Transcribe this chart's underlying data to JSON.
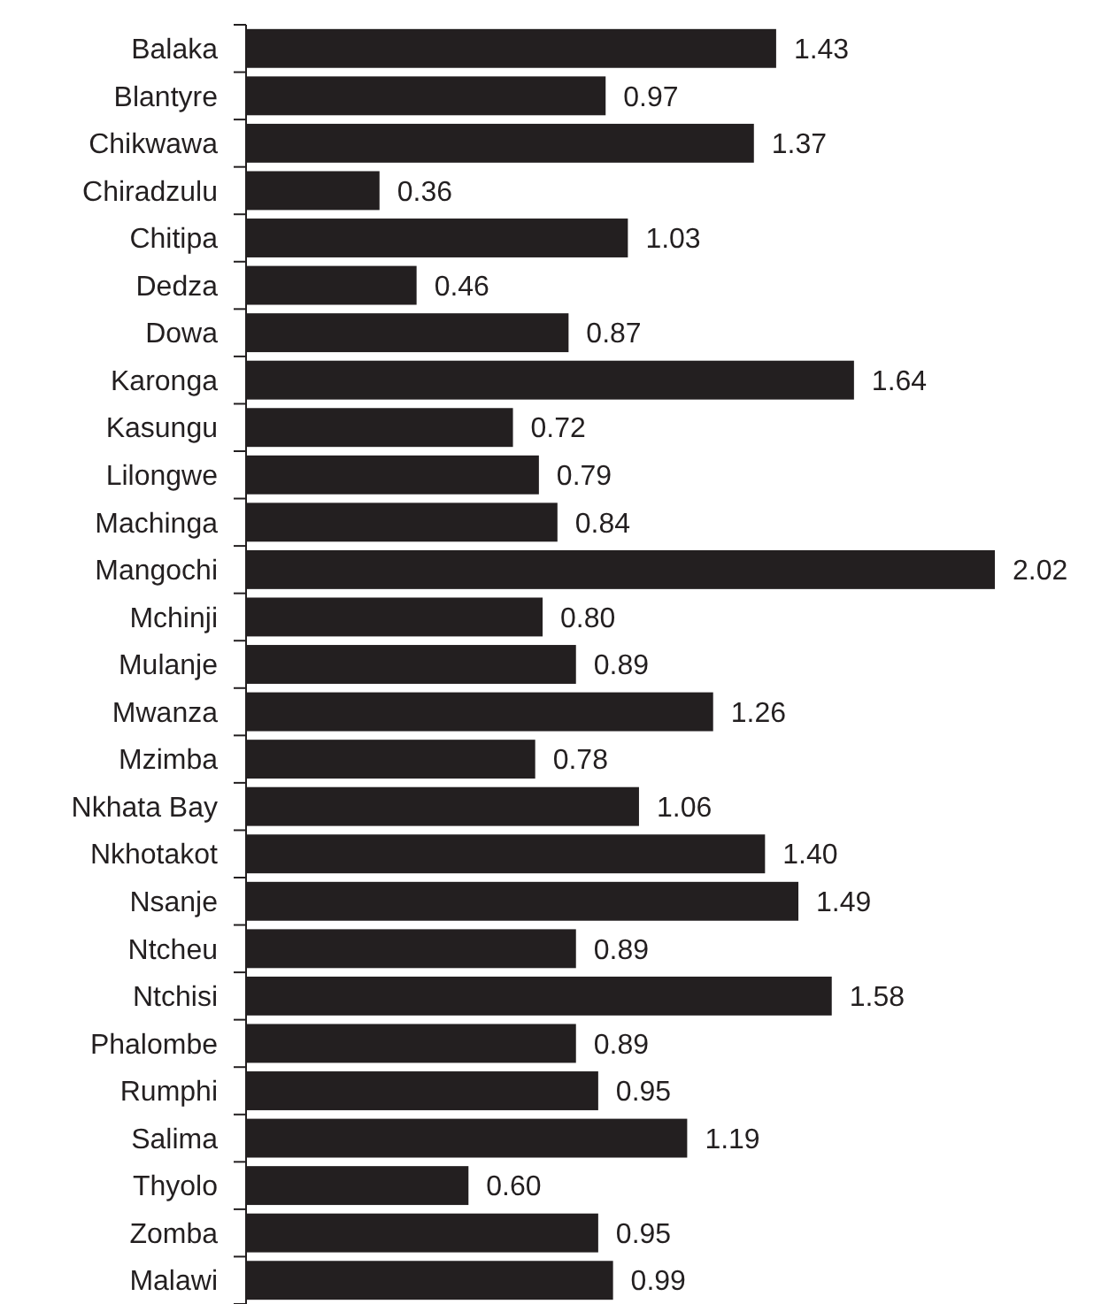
{
  "chart_data": {
    "type": "bar",
    "orientation": "horizontal",
    "color": "#231f20",
    "categories": [
      "Balaka",
      "Blantyre",
      "Chikwawa",
      "Chiradzulu",
      "Chitipa",
      "Dedza",
      "Dowa",
      "Karonga",
      "Kasungu",
      "Lilongwe",
      "Machinga",
      "Mangochi",
      "Mchinji",
      "Mulanje",
      "Mwanza",
      "Mzimba",
      "Nkhata Bay",
      "Nkhotakot",
      "Nsanje",
      "Ntcheu",
      "Ntchisi",
      "Phalombe",
      "Rumphi",
      "Salima",
      "Thyolo",
      "Zomba",
      "Malawi"
    ],
    "values": [
      1.43,
      0.97,
      1.37,
      0.36,
      1.03,
      0.46,
      0.87,
      1.64,
      0.72,
      0.79,
      0.84,
      2.02,
      0.8,
      0.89,
      1.26,
      0.78,
      1.06,
      1.4,
      1.49,
      0.89,
      1.58,
      0.89,
      0.95,
      1.19,
      0.6,
      0.95,
      0.99
    ],
    "value_labels": [
      "1.43",
      "0.97",
      "1.37",
      "0.36",
      "1.03",
      "0.46",
      "0.87",
      "1.64",
      "0.72",
      "0.79",
      "0.84",
      "2.02",
      "0.80",
      "0.89",
      "1.26",
      "0.78",
      "1.06",
      "1.40",
      "1.49",
      "0.89",
      "1.58",
      "0.89",
      "0.95",
      "1.19",
      "0.60",
      "0.95",
      "0.99"
    ]
  }
}
